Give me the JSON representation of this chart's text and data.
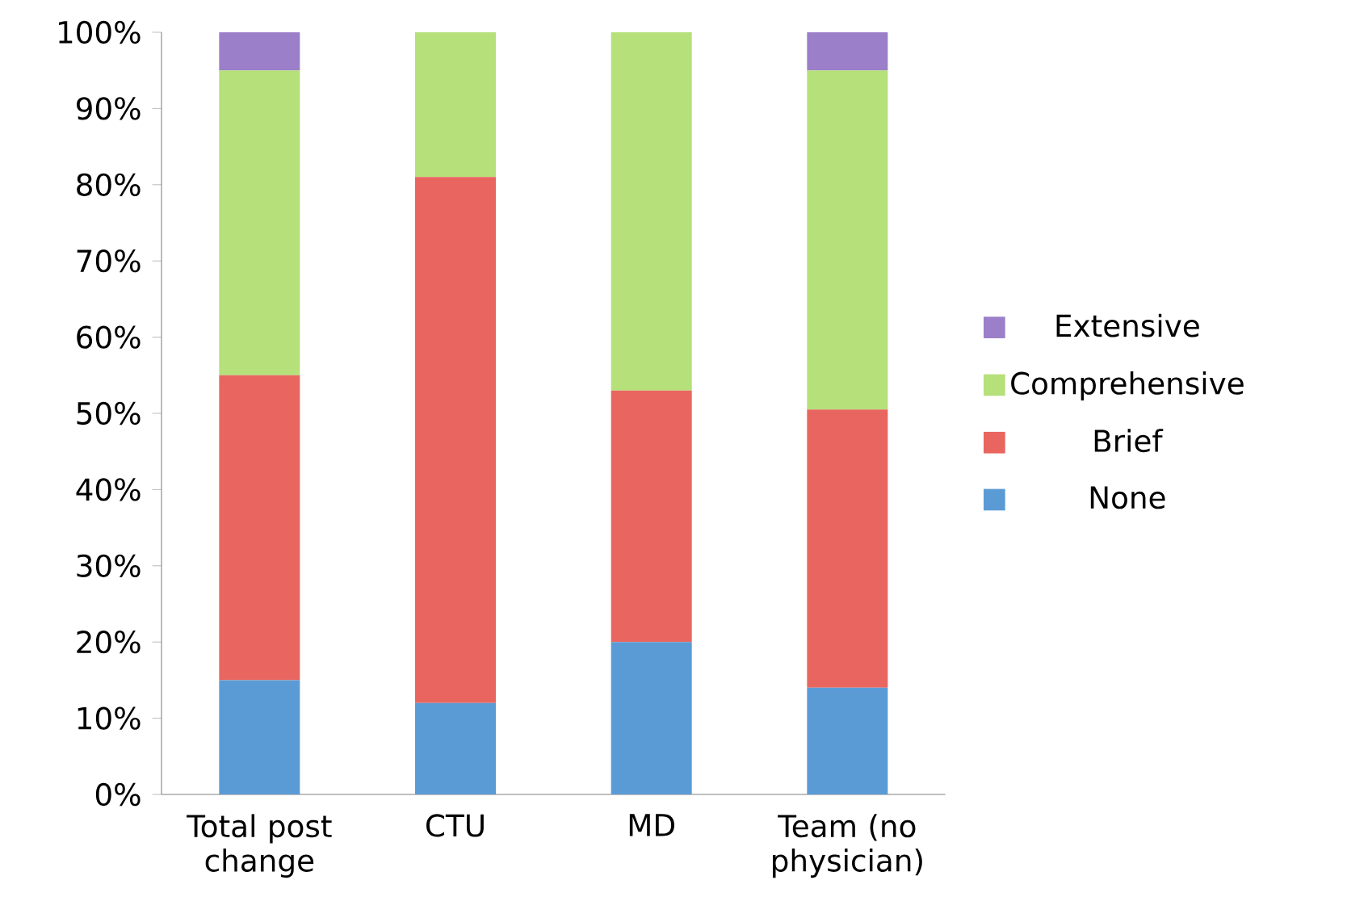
{
  "chart_data": {
    "type": "bar",
    "stacked": true,
    "categories": [
      "Total post change",
      "CTU",
      "MD",
      "Team (no physician)"
    ],
    "series": [
      {
        "name": "None",
        "color": "#5b9bd5",
        "values": [
          15,
          12,
          20,
          14
        ]
      },
      {
        "name": "Brief",
        "color": "#e8665f",
        "values": [
          40,
          69,
          33,
          36.5
        ]
      },
      {
        "name": "Comprehensive",
        "color": "#b5e07a",
        "values": [
          40,
          19,
          47,
          44.5
        ]
      },
      {
        "name": "Extensive",
        "color": "#9b7fc9",
        "values": [
          5,
          0,
          0,
          5
        ]
      }
    ],
    "ylim": [
      0,
      100
    ],
    "yticks": [
      {
        "value": 0,
        "label": "0%"
      },
      {
        "value": 10,
        "label": "10%"
      },
      {
        "value": 20,
        "label": "20%"
      },
      {
        "value": 30,
        "label": "30%"
      },
      {
        "value": 40,
        "label": "40%"
      },
      {
        "value": 50,
        "label": "50%"
      },
      {
        "value": 60,
        "label": "60%"
      },
      {
        "value": 70,
        "label": "70%"
      },
      {
        "value": 80,
        "label": "80%"
      },
      {
        "value": 90,
        "label": "90%"
      },
      {
        "value": 100,
        "label": "100%"
      }
    ],
    "grid": false,
    "legend": "right"
  }
}
